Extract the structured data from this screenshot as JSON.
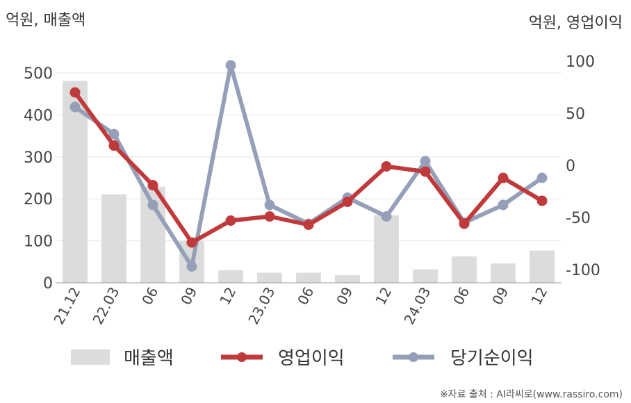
{
  "chart_data": {
    "type": "bar+line",
    "left_axis_label": "억원, 매출액",
    "right_axis_label": "억원, 영업이익",
    "categories": [
      "21.12",
      "22.03",
      "06",
      "09",
      "12",
      "23.03",
      "06",
      "09",
      "12",
      "24.03",
      "06",
      "09",
      "12"
    ],
    "left_ylim": [
      0,
      500
    ],
    "left_ticks": [
      "0",
      "100",
      "200",
      "300",
      "400",
      "500"
    ],
    "right_ylim": [
      -100,
      100
    ],
    "right_ticks": [
      "-100",
      "-50",
      "0",
      "50",
      "100"
    ],
    "grid": true,
    "legend_position": "bottom",
    "series": [
      {
        "name": "매출액",
        "type": "bar",
        "axis": "left",
        "color": "#dcdcdc",
        "values": [
          481,
          211,
          229,
          100,
          30,
          24,
          24,
          18,
          161,
          32,
          63,
          46,
          77
        ]
      },
      {
        "name": "영업이익",
        "type": "line",
        "axis": "right",
        "color": "#c0393b",
        "values": [
          70,
          19,
          -19,
          -74,
          -53,
          -49,
          -57,
          -35,
          -1,
          -6,
          -56,
          -12,
          -34
        ]
      },
      {
        "name": "당기순이익",
        "type": "line",
        "axis": "right",
        "color": "#95a0b8",
        "values": [
          56,
          30,
          -38,
          -97,
          96,
          -38,
          -56,
          -31,
          -49,
          4,
          -55,
          -38,
          -12
        ]
      }
    ]
  },
  "source": "※자료 출처 : AI라씨로(www.rassiro.com)"
}
